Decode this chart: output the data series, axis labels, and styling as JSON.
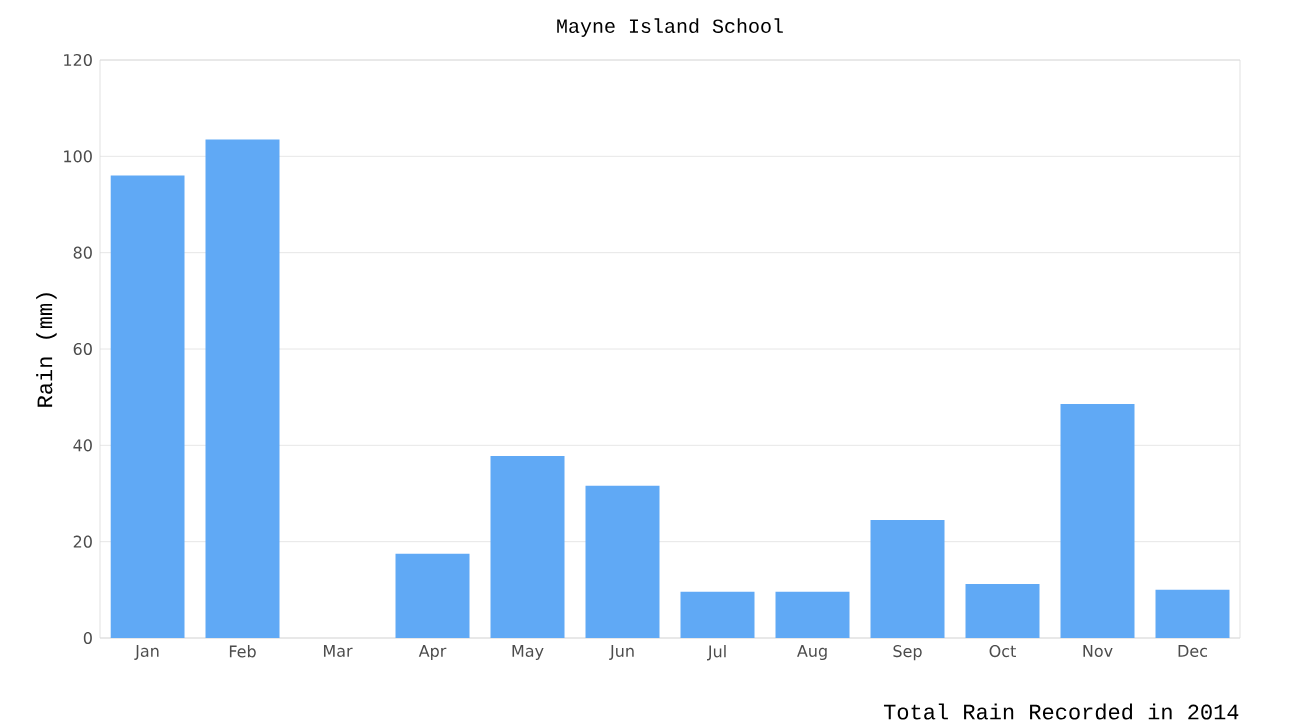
{
  "chart_data": {
    "type": "bar",
    "title": "Mayne Island School",
    "xlabel": "Total Rain Recorded in 2014",
    "ylabel": "Rain (mm)",
    "categories": [
      "Jan",
      "Feb",
      "Mar",
      "Apr",
      "May",
      "Jun",
      "Jul",
      "Aug",
      "Sep",
      "Oct",
      "Nov",
      "Dec"
    ],
    "values": [
      96.0,
      103.5,
      0,
      17.5,
      37.8,
      31.6,
      9.6,
      9.6,
      24.5,
      11.2,
      48.6,
      10.0
    ],
    "color": "#60a9f5",
    "ylim": [
      0,
      120
    ],
    "yticks": [
      0,
      20,
      40,
      60,
      80,
      100,
      120
    ],
    "grid": "y"
  }
}
